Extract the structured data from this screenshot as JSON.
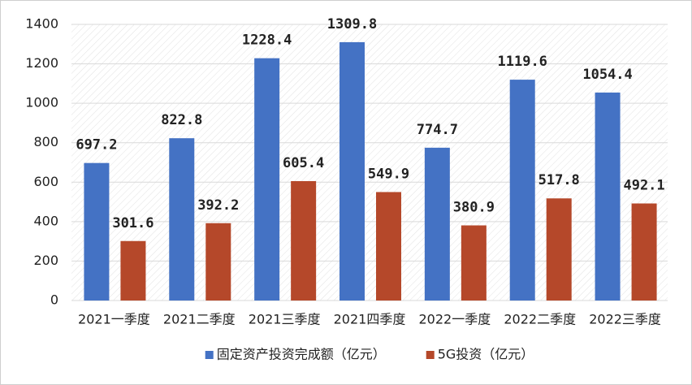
{
  "chart_data": {
    "type": "bar",
    "categories": [
      "2021一季度",
      "2021二季度",
      "2021三季度",
      "2021四季度",
      "2022一季度",
      "2022二季度",
      "2022三季度"
    ],
    "series": [
      {
        "name": "固定资产投资完成额（亿元）",
        "color": "#4472c4",
        "values": [
          697.2,
          822.8,
          1228.4,
          1309.8,
          774.7,
          1119.6,
          1054.4
        ]
      },
      {
        "name": "5G投资（亿元）",
        "color": "#b5482a",
        "values": [
          301.6,
          392.2,
          605.4,
          549.9,
          380.9,
          517.8,
          492.1
        ]
      }
    ],
    "ylim": [
      0,
      1400
    ],
    "yticks": [
      0,
      200,
      400,
      600,
      800,
      1000,
      1200,
      1400
    ],
    "grid": true,
    "legend": "bottom"
  }
}
